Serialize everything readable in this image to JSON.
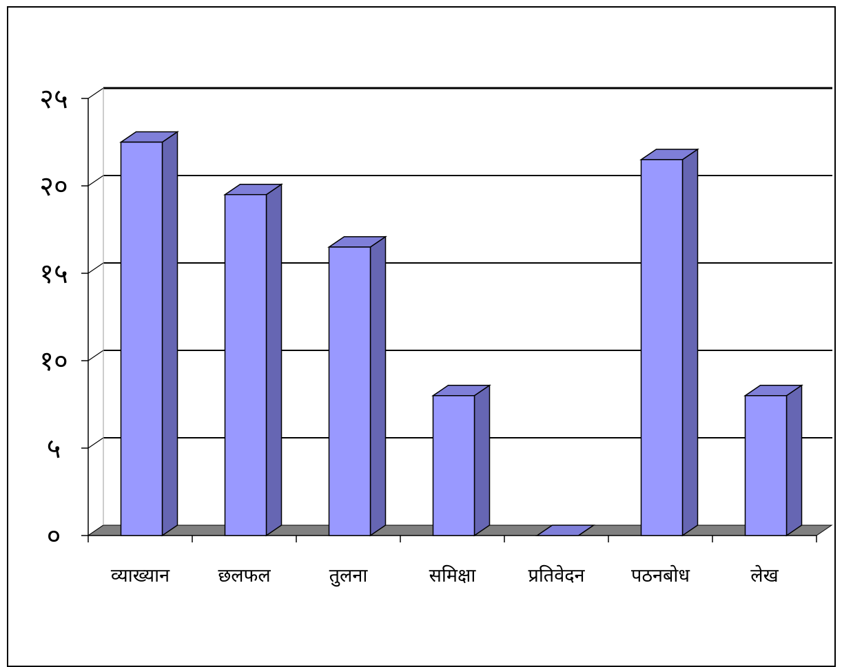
{
  "chart_data": {
    "type": "bar",
    "style": "3d-column",
    "categories": [
      "व्याख्यान",
      "छलफल",
      "तुलना",
      "समिक्षा",
      "प्रतिवेदन",
      "पठनबोध",
      "लेख"
    ],
    "values": [
      22.5,
      19.5,
      16.5,
      8,
      0,
      21.5,
      8
    ],
    "ylim": [
      0,
      25
    ],
    "yticks": [
      0,
      5,
      10,
      15,
      20,
      25
    ],
    "ytick_labels": [
      "०",
      "५",
      "१०",
      "१५",
      "२०",
      "२५"
    ],
    "title": "",
    "xlabel": "",
    "ylabel": "",
    "grid": true,
    "legend": false,
    "colors": {
      "bar_front": "#9999ff",
      "bar_side": "#6666b3",
      "bar_top": "#7f7fd9",
      "floor": "#808080",
      "grid": "#000000"
    }
  }
}
